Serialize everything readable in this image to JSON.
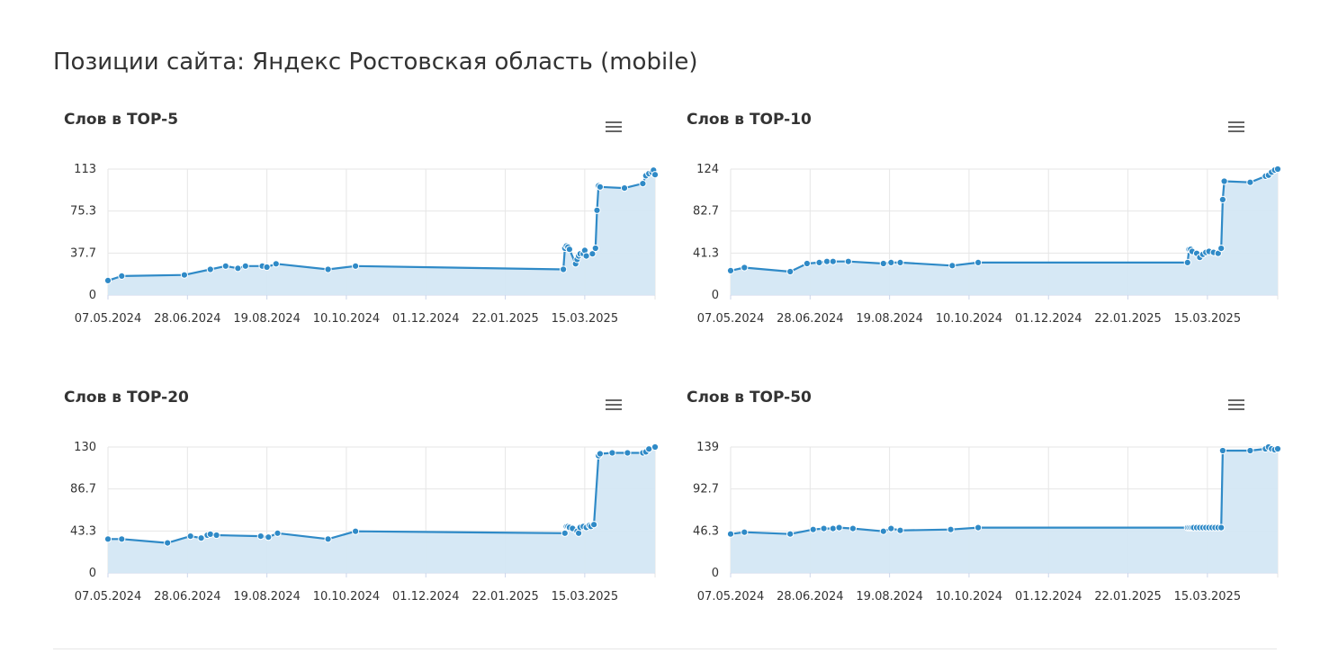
{
  "page": {
    "title": "Позиции сайта: Яндекс Ростовская область (mobile)"
  },
  "styles": {
    "line_color": "#2f8ac7",
    "fill_color": "#d4e7f4",
    "grid_color": "#e6e6e6"
  },
  "icons": {
    "chart_menu": "hamburger-icon"
  },
  "chart_data": [
    {
      "type": "area",
      "title": "Слов в TOP-5",
      "xlabel": "",
      "ylabel": "",
      "ylim": [
        0,
        113
      ],
      "yticks": [
        "0",
        "37.7",
        "75.3",
        "113"
      ],
      "xticks": [
        "07.05.2024",
        "28.06.2024",
        "19.08.2024",
        "10.10.2024",
        "01.12.2024",
        "22.01.2025",
        "15.03.2025"
      ],
      "grid": true,
      "series": [
        {
          "x": [
            "2024-05-07",
            "2024-05-16",
            "2024-06-26",
            "2024-07-13",
            "2024-07-23",
            "2024-07-31",
            "2024-08-05",
            "2024-08-16",
            "2024-08-19",
            "2024-08-25",
            "2024-09-28",
            "2024-10-16",
            "2025-03-01",
            "2025-03-02",
            "2025-03-03",
            "2025-03-04",
            "2025-03-05",
            "2025-03-09",
            "2025-03-10",
            "2025-03-11",
            "2025-03-12",
            "2025-03-14",
            "2025-03-15",
            "2025-03-16",
            "2025-03-20",
            "2025-03-22",
            "2025-03-23",
            "2025-03-24",
            "2025-03-25",
            "2025-04-10",
            "2025-04-22",
            "2025-04-24",
            "2025-04-26",
            "2025-04-28",
            "2025-04-29",
            "2025-04-30"
          ],
          "y": [
            13,
            17,
            18,
            23,
            26,
            24,
            26,
            26,
            25,
            28,
            23,
            26,
            23,
            42,
            44,
            43,
            41,
            28,
            32,
            35,
            37,
            37,
            40,
            35,
            37,
            42,
            76,
            98,
            97,
            96,
            100,
            107,
            109,
            110,
            112,
            108
          ]
        }
      ]
    },
    {
      "type": "area",
      "title": "Слов в TOP-10",
      "xlabel": "",
      "ylabel": "",
      "ylim": [
        0,
        124
      ],
      "yticks": [
        "0",
        "41.3",
        "82.7",
        "124"
      ],
      "xticks": [
        "07.05.2024",
        "28.06.2024",
        "19.08.2024",
        "10.10.2024",
        "01.12.2024",
        "22.01.2025",
        "15.03.2025"
      ],
      "grid": true,
      "series": [
        {
          "x": [
            "2024-05-07",
            "2024-05-16",
            "2024-06-15",
            "2024-06-26",
            "2024-07-04",
            "2024-07-09",
            "2024-07-13",
            "2024-07-23",
            "2024-08-15",
            "2024-08-20",
            "2024-08-26",
            "2024-09-29",
            "2024-10-16",
            "2025-03-02",
            "2025-03-03",
            "2025-03-04",
            "2025-03-05",
            "2025-03-08",
            "2025-03-10",
            "2025-03-12",
            "2025-03-14",
            "2025-03-16",
            "2025-03-19",
            "2025-03-22",
            "2025-03-24",
            "2025-03-25",
            "2025-03-26",
            "2025-04-12",
            "2025-04-22",
            "2025-04-24",
            "2025-04-26",
            "2025-04-28",
            "2025-04-30"
          ],
          "y": [
            24,
            27,
            23,
            31,
            32,
            33,
            33,
            33,
            31,
            32,
            32,
            29,
            32,
            32,
            45,
            45,
            43,
            41,
            37,
            40,
            42,
            43,
            42,
            41,
            46,
            94,
            112,
            111,
            117,
            118,
            121,
            123,
            124
          ]
        }
      ]
    },
    {
      "type": "area",
      "title": "Слов в TOP-20",
      "xlabel": "",
      "ylabel": "",
      "ylim": [
        0,
        130
      ],
      "yticks": [
        "0",
        "43.3",
        "86.7",
        "130"
      ],
      "xticks": [
        "07.05.2024",
        "28.06.2024",
        "19.08.2024",
        "10.10.2024",
        "01.12.2024",
        "22.01.2025",
        "15.03.2025"
      ],
      "grid": true,
      "series": [
        {
          "x": [
            "2024-05-07",
            "2024-05-16",
            "2024-06-15",
            "2024-06-30",
            "2024-07-07",
            "2024-07-11",
            "2024-07-13",
            "2024-07-17",
            "2024-08-15",
            "2024-08-20",
            "2024-08-26",
            "2024-09-28",
            "2024-10-16",
            "2025-03-02",
            "2025-03-03",
            "2025-03-04",
            "2025-03-05",
            "2025-03-07",
            "2025-03-10",
            "2025-03-11",
            "2025-03-12",
            "2025-03-14",
            "2025-03-16",
            "2025-03-18",
            "2025-03-19",
            "2025-03-21",
            "2025-03-24",
            "2025-03-25",
            "2025-04-02",
            "2025-04-12",
            "2025-04-22",
            "2025-04-24",
            "2025-04-26",
            "2025-04-30"
          ],
          "y": [
            35,
            35,
            31,
            38,
            36,
            39,
            40,
            39,
            38,
            37,
            41,
            35,
            43,
            41,
            48,
            48,
            47,
            46,
            43,
            41,
            47,
            48,
            47,
            49,
            48,
            50,
            121,
            123,
            124,
            124,
            124,
            125,
            128,
            130
          ]
        }
      ]
    },
    {
      "type": "area",
      "title": "Слов в TOP-50",
      "xlabel": "",
      "ylabel": "",
      "ylim": [
        0,
        139
      ],
      "yticks": [
        "0",
        "46.3",
        "92.7",
        "139"
      ],
      "xticks": [
        "07.05.2024",
        "28.06.2024",
        "19.08.2024",
        "10.10.2024",
        "01.12.2024",
        "22.01.2025",
        "15.03.2025"
      ],
      "grid": true,
      "series": [
        {
          "x": [
            "2024-05-07",
            "2024-05-16",
            "2024-06-15",
            "2024-06-30",
            "2024-07-07",
            "2024-07-13",
            "2024-07-17",
            "2024-07-26",
            "2024-08-15",
            "2024-08-20",
            "2024-08-26",
            "2024-09-28",
            "2024-10-16",
            "2025-03-02",
            "2025-03-03",
            "2025-03-04",
            "2025-03-05",
            "2025-03-06",
            "2025-03-08",
            "2025-03-10",
            "2025-03-12",
            "2025-03-14",
            "2025-03-16",
            "2025-03-18",
            "2025-03-20",
            "2025-03-22",
            "2025-03-24",
            "2025-03-25",
            "2025-04-12",
            "2025-04-22",
            "2025-04-24",
            "2025-04-26",
            "2025-04-28",
            "2025-04-30"
          ],
          "y": [
            43,
            45,
            43,
            48,
            49,
            49,
            50,
            49,
            46,
            49,
            47,
            48,
            50,
            50,
            50,
            50,
            50,
            50,
            50,
            50,
            50,
            50,
            50,
            50,
            50,
            50,
            50,
            135,
            135,
            137,
            139,
            137,
            136,
            137
          ]
        }
      ]
    }
  ]
}
